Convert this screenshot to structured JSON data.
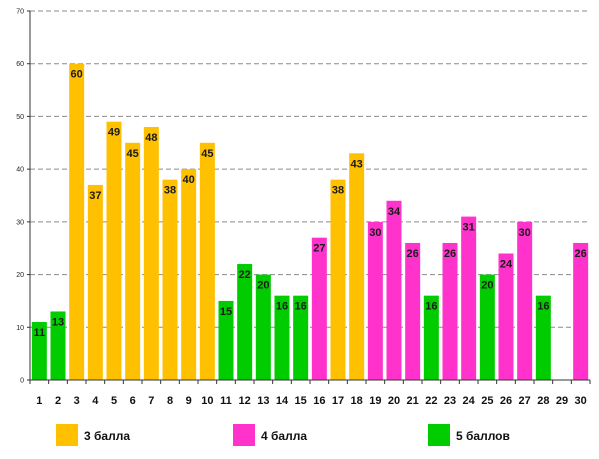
{
  "chart_data": {
    "type": "bar",
    "categories": [
      "1",
      "2",
      "3",
      "4",
      "5",
      "6",
      "7",
      "8",
      "9",
      "10",
      "11",
      "12",
      "13",
      "14",
      "15",
      "16",
      "17",
      "18",
      "19",
      "20",
      "21",
      "22",
      "23",
      "24",
      "25",
      "26",
      "27",
      "28",
      "29",
      "30"
    ],
    "values": [
      11,
      13,
      60,
      37,
      49,
      45,
      48,
      38,
      40,
      45,
      15,
      22,
      20,
      16,
      16,
      27,
      38,
      43,
      30,
      34,
      26,
      16,
      26,
      31,
      20,
      24,
      30,
      16,
      null,
      26
    ],
    "groups": [
      "5",
      "5",
      "3",
      "3",
      "3",
      "3",
      "3",
      "3",
      "3",
      "3",
      "5",
      "5",
      "5",
      "5",
      "5",
      "4",
      "3",
      "3",
      "4",
      "4",
      "4",
      "5",
      "4",
      "4",
      "5",
      "4",
      "4",
      "5",
      "4",
      "4"
    ],
    "legend": [
      {
        "key": "3",
        "label": "3 балла",
        "color": "#FFC000"
      },
      {
        "key": "4",
        "label": "4 балла",
        "color": "#FF33CC"
      },
      {
        "key": "5",
        "label": "5 баллов",
        "color": "#00CC00"
      }
    ],
    "yticks": [
      0,
      10,
      20,
      30,
      40,
      50,
      60,
      70
    ],
    "ylim": [
      0,
      70
    ],
    "title": "",
    "xlabel": "",
    "ylabel": "",
    "grid": true,
    "legend_position": "bottom"
  }
}
